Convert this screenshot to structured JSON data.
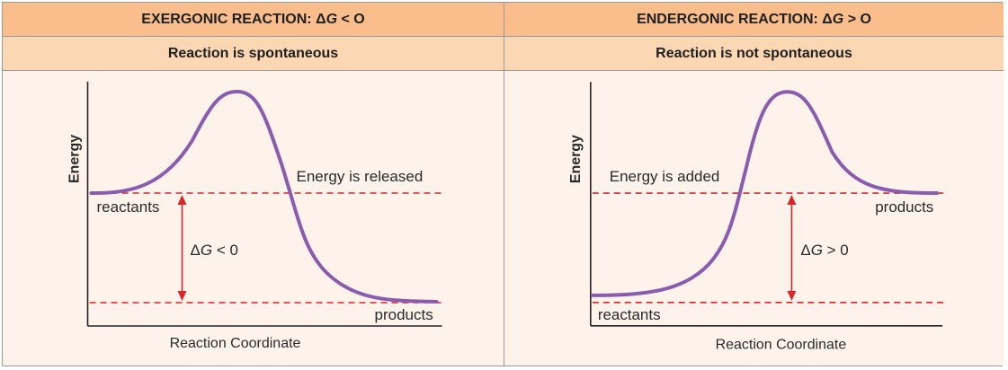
{
  "exergonic": {
    "title_prefix": "EXERGONIC REACTION: Δ",
    "title_symbol": "G",
    "title_suffix": " < O",
    "subtitle": "Reaction is spontaneous",
    "y_axis_label": "Energy",
    "x_axis_label": "Reaction Coordinate",
    "reactants_label": "reactants",
    "products_label": "products",
    "energy_note": "Energy is released",
    "delta_prefix": "Δ",
    "delta_symbol": "G",
    "delta_suffix": " < 0"
  },
  "endergonic": {
    "title_prefix": "ENDERGONIC REACTION: Δ",
    "title_symbol": "G",
    "title_suffix": " > O",
    "subtitle": "Reaction is not spontaneous",
    "y_axis_label": "Energy",
    "x_axis_label": "Reaction Coordinate",
    "reactants_label": "reactants",
    "products_label": "products",
    "energy_note": "Energy is added",
    "delta_prefix": "Δ",
    "delta_symbol": "G",
    "delta_suffix": " > 0"
  },
  "colors": {
    "header": "#f9be8c",
    "subheader": "#fbd7b4",
    "body": "#fdf3ea",
    "curve": "#8a5cb0",
    "dashed_line": "#d9262b",
    "arrow": "#d9262b"
  }
}
